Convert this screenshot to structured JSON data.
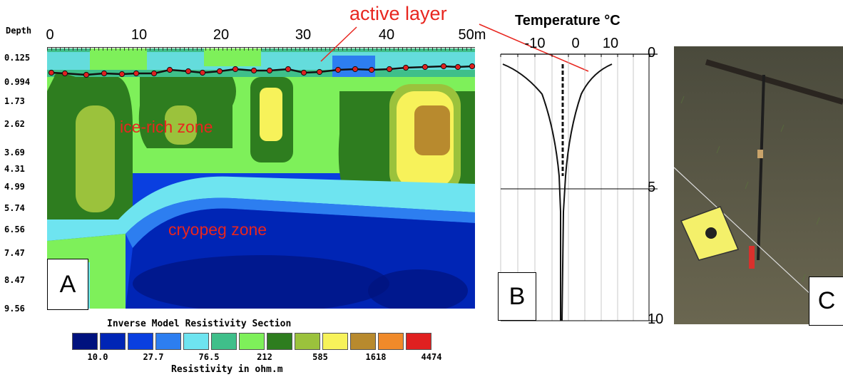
{
  "panel_a": {
    "depth_title": "Depth",
    "x_ticks": [
      "0",
      "10",
      "20",
      "30",
      "40",
      "50m"
    ],
    "depth_ticks": [
      "0.125",
      "0.994",
      "1.73",
      "2.62",
      "3.69",
      "4.31",
      "4.99",
      "5.74",
      "6.56",
      "7.47",
      "8.47",
      "9.56"
    ],
    "label_ice": "ice-rich  zone",
    "label_cryopeg": "cryopeg zone",
    "label_active": "active layer",
    "letter": "A",
    "legend_title": "Inverse Model Resistivity Section",
    "legend_values": [
      "10.0",
      "27.7",
      "76.5",
      "212",
      "585",
      "1618",
      "4474"
    ],
    "legend_unit": "Resistivity in ohm.m",
    "legend_colors": [
      "#00127e",
      "#0025b5",
      "#0a3fe0",
      "#2d7ef0",
      "#6ee4f0",
      "#3fbf8a",
      "#7ef05a",
      "#2e7d1f",
      "#9bc23c",
      "#f7f25a",
      "#b88a2e",
      "#f08a2a",
      "#e02020"
    ]
  },
  "panel_b": {
    "title": "Temperature °C",
    "x_ticks": [
      "-10",
      "0",
      "10"
    ],
    "depth_ticks": [
      "0",
      "5",
      "10"
    ],
    "letter": "B"
  },
  "panel_c": {
    "letter": "C"
  }
}
